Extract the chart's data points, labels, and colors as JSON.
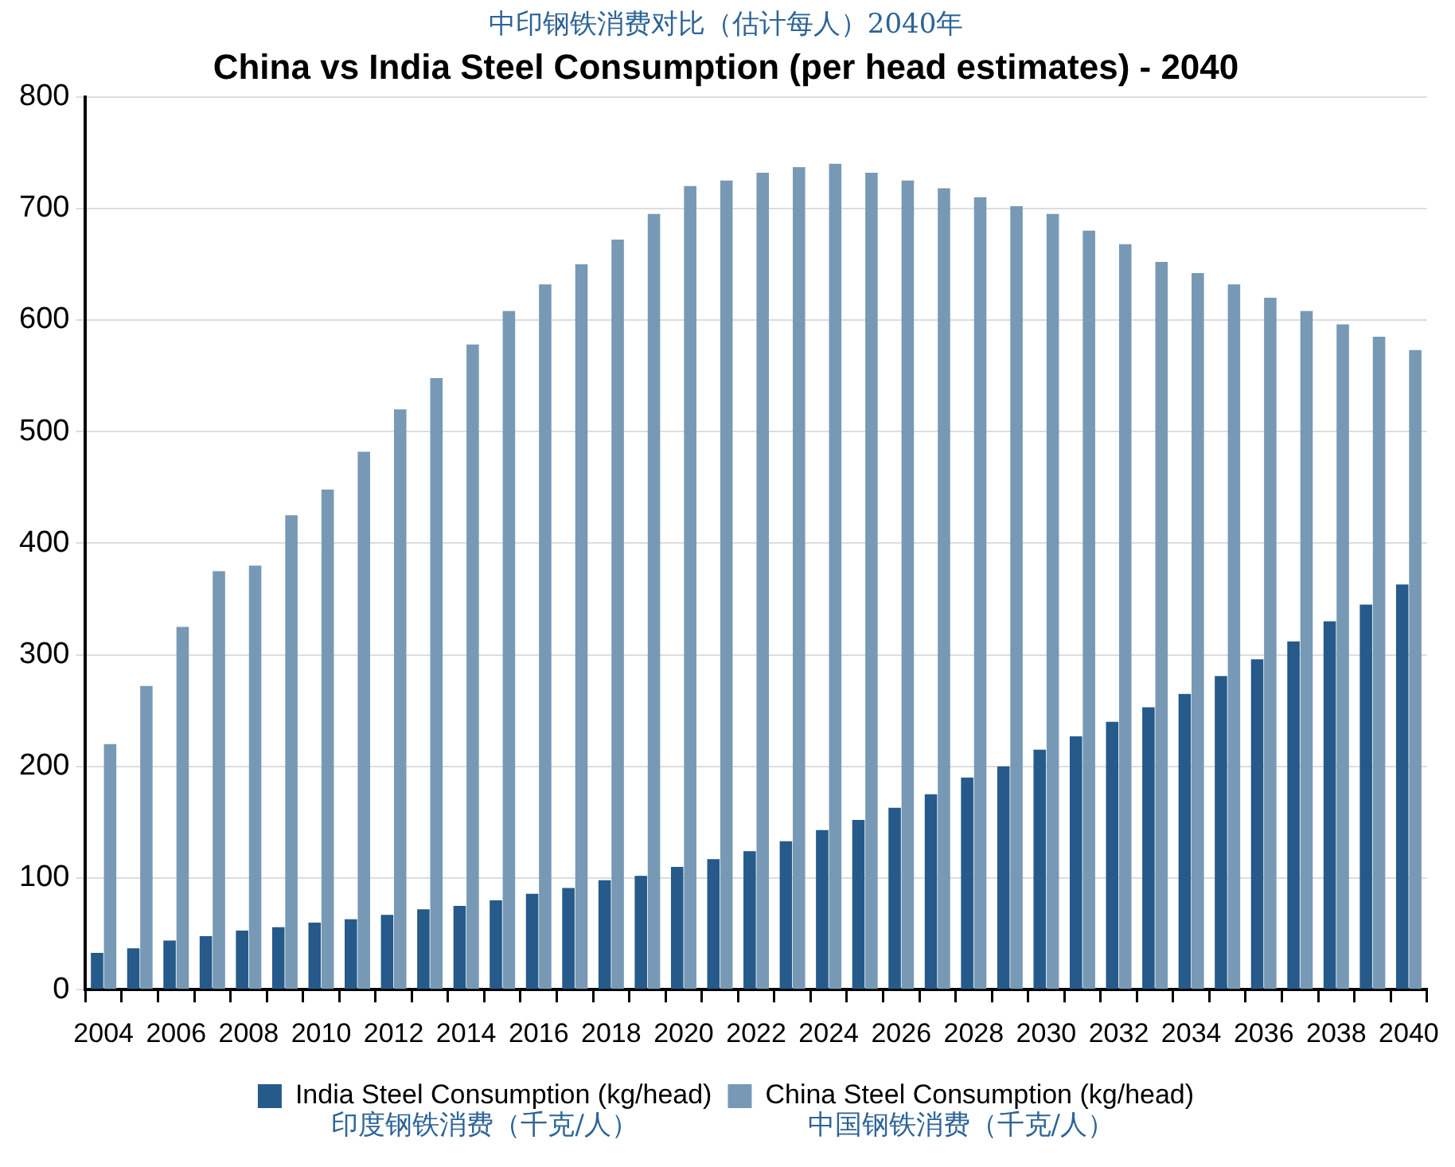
{
  "chart_data": {
    "type": "bar",
    "title": "中印钢铁消费对比（估计每人）2040年",
    "subtitle": "China vs India Steel Consumption (per head estimates) - 2040",
    "categories": [
      "2004",
      null,
      "2006",
      null,
      "2008",
      null,
      "2010",
      null,
      "2012",
      null,
      "2014",
      null,
      "2016",
      null,
      "2018",
      null,
      "2020",
      null,
      "2022",
      null,
      "2024",
      null,
      "2026",
      null,
      "2028",
      null,
      "2030",
      null,
      "2032",
      null,
      "2034",
      null,
      "2036",
      null,
      "2038",
      null,
      "2040"
    ],
    "series": [
      {
        "name": "India Steel Consumption (kg/head)",
        "color": "#255a8a",
        "values": [
          33,
          37,
          44,
          48,
          53,
          56,
          60,
          63,
          67,
          72,
          75,
          80,
          86,
          91,
          98,
          102,
          110,
          117,
          124,
          133,
          143,
          152,
          163,
          175,
          190,
          200,
          215,
          227,
          240,
          253,
          265,
          281,
          296,
          312,
          330,
          345,
          363
        ]
      },
      {
        "name": "China Steel Consumption (kg/head)",
        "color": "#7799b5",
        "values": [
          220,
          272,
          325,
          375,
          380,
          425,
          448,
          482,
          520,
          548,
          578,
          608,
          632,
          650,
          672,
          695,
          720,
          725,
          732,
          737,
          740,
          732,
          725,
          718,
          710,
          702,
          695,
          680,
          668,
          652,
          642,
          632,
          620,
          608,
          596,
          585,
          573
        ]
      }
    ],
    "annotations": [
      "印度钢铁消费（千克/人）",
      "中国钢铁消费（千克/人）"
    ],
    "ylim": [
      0,
      800
    ],
    "yticks": [
      0,
      100,
      200,
      300,
      400,
      500,
      600,
      700,
      800
    ],
    "grid": "y",
    "legend": "bottom"
  }
}
